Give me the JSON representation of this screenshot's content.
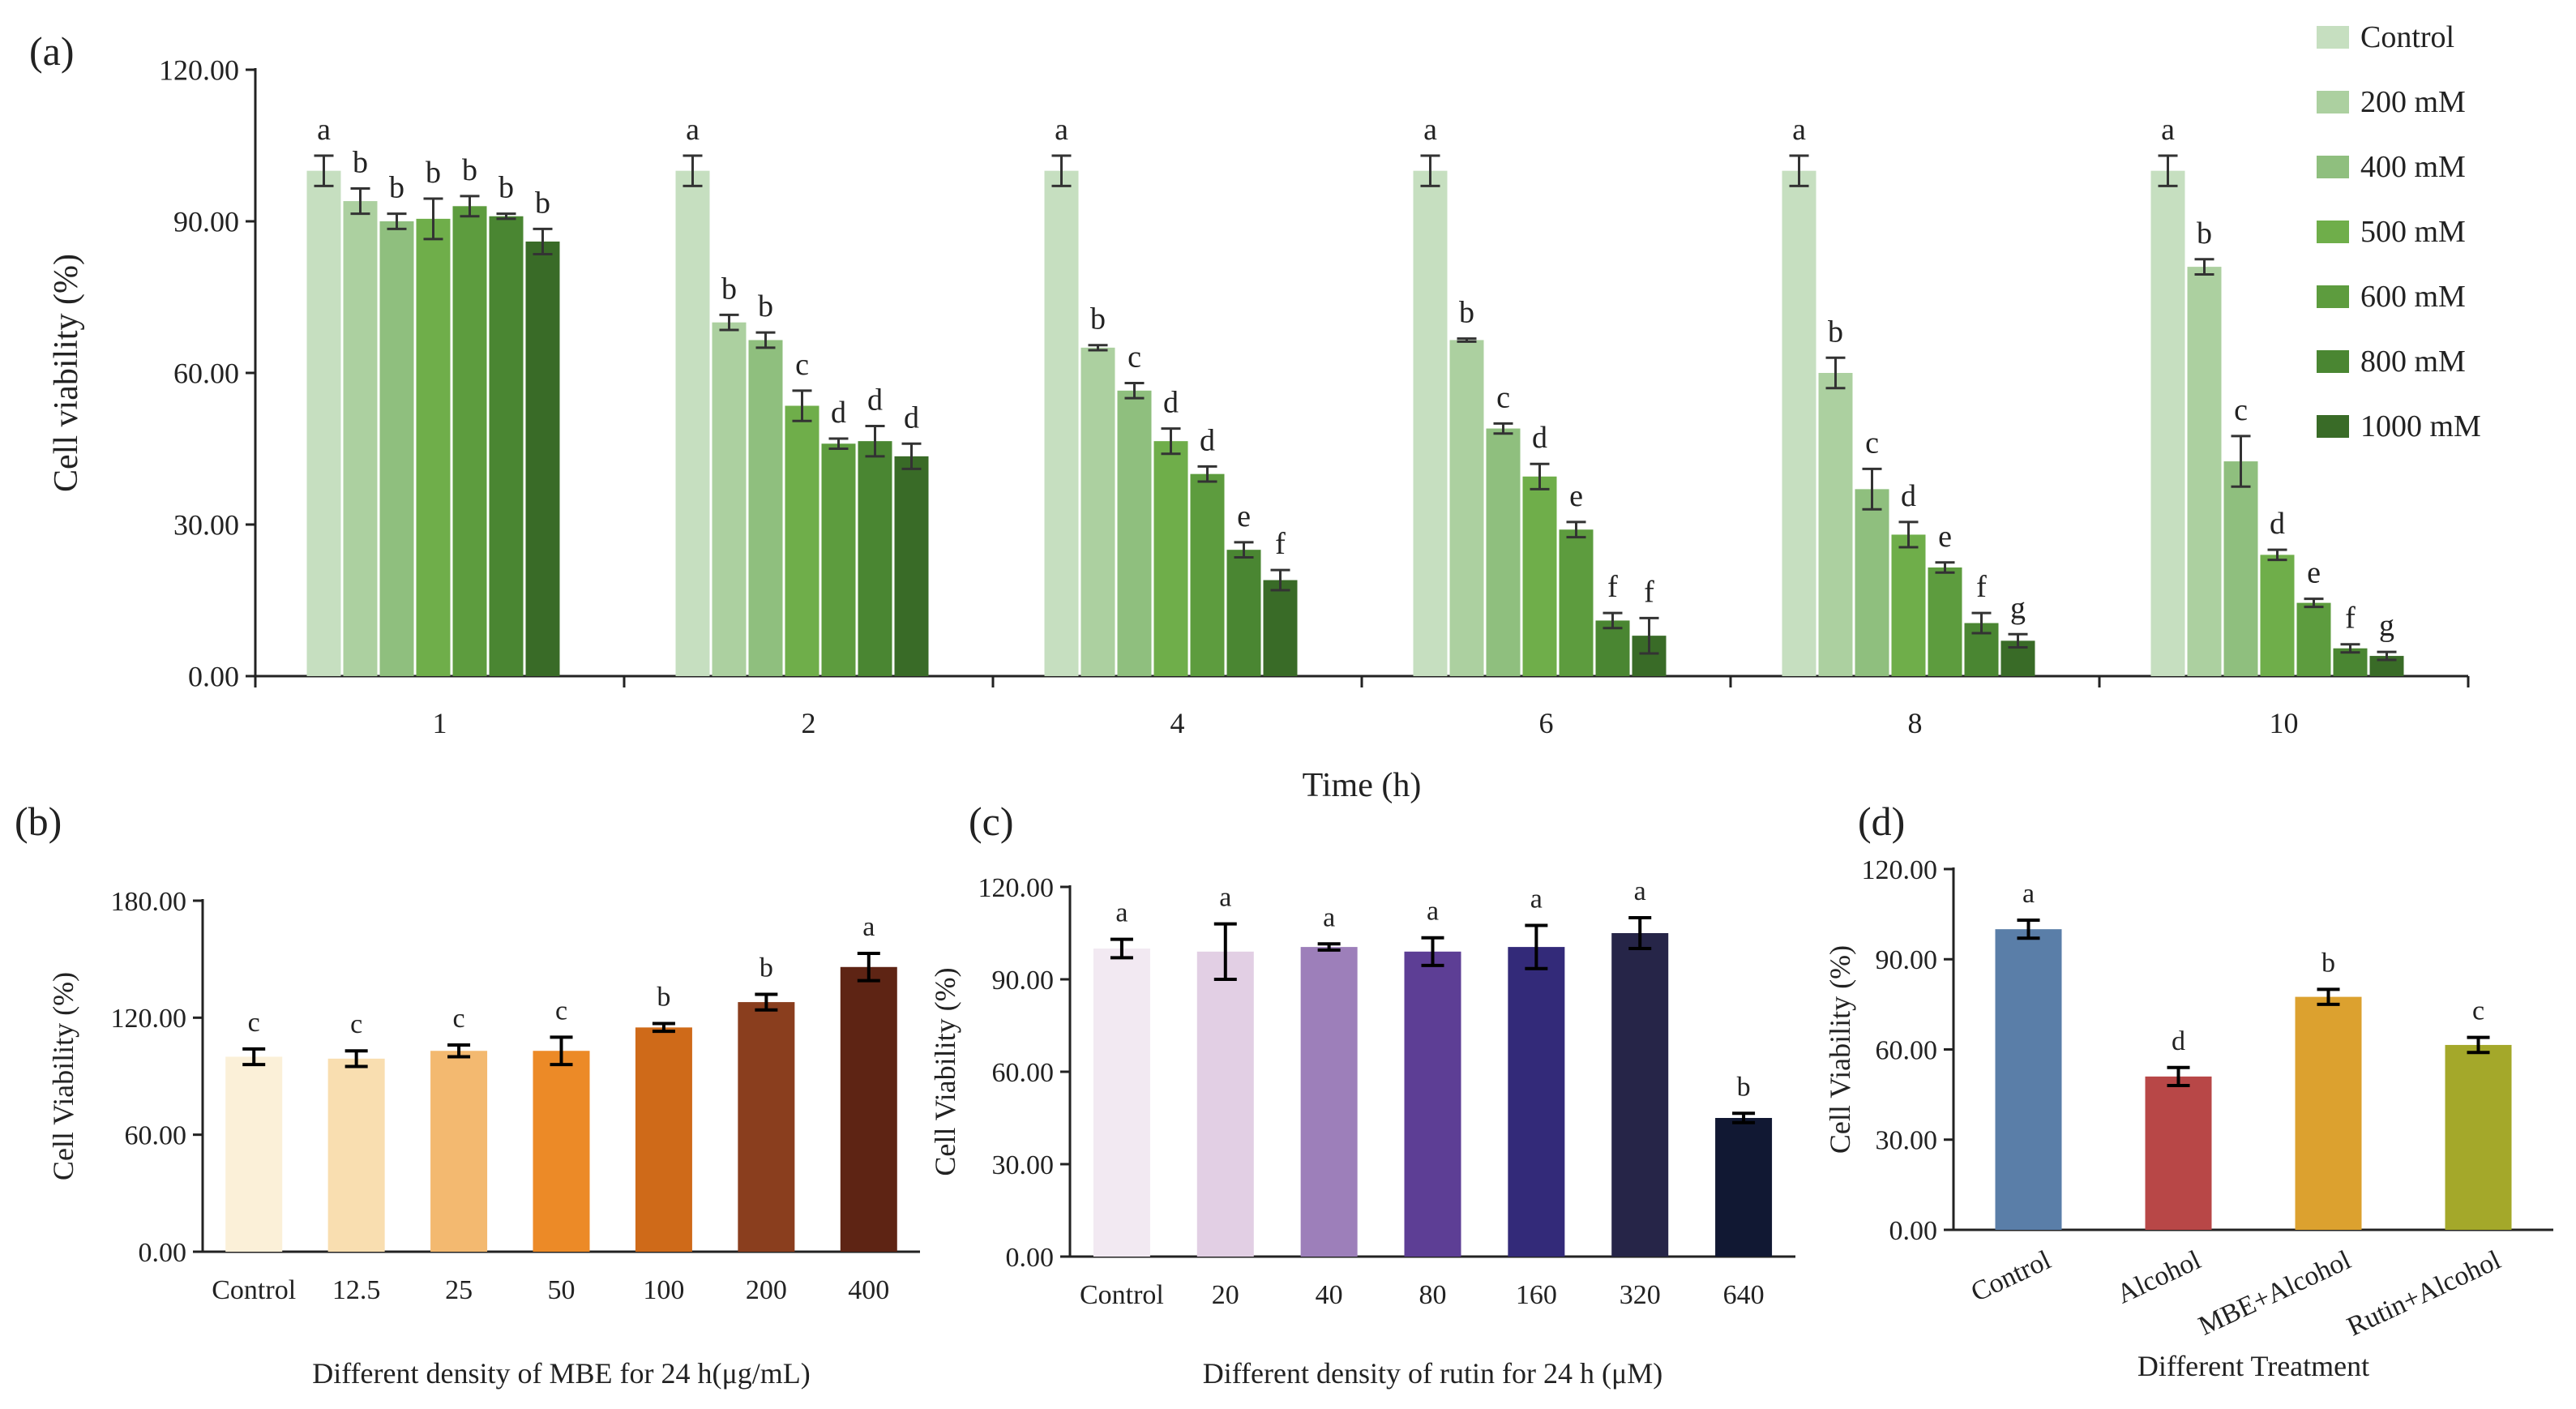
{
  "chart_data": [
    {
      "id": "a",
      "panel_label": "(a)",
      "type": "bar",
      "title": "",
      "xlabel": "Time (h)",
      "ylabel": "Cell viability (%)",
      "ylim": [
        0,
        120
      ],
      "yticks": [
        "0.00",
        "30.00",
        "60.00",
        "90.00",
        "120.00"
      ],
      "categories": [
        "1",
        "2",
        "4",
        "6",
        "8",
        "10"
      ],
      "legend_position": "top-right",
      "series": [
        {
          "name": "Control",
          "color": "#c6dfc0",
          "values": [
            100,
            100,
            100,
            100,
            100,
            100
          ],
          "errors": [
            3,
            3,
            3,
            3,
            3,
            3
          ],
          "labels": [
            "a",
            "a",
            "a",
            "a",
            "a",
            "a"
          ]
        },
        {
          "name": "200 mM",
          "color": "#acd0a0",
          "values": [
            94,
            70,
            65,
            66.5,
            60,
            81
          ],
          "errors": [
            2.5,
            1.5,
            0.5,
            0.3,
            3,
            1.5
          ],
          "labels": [
            "b",
            "b",
            "b",
            "b",
            "b",
            "b"
          ]
        },
        {
          "name": "400 mM",
          "color": "#8fbf7e",
          "values": [
            90,
            66.5,
            56.5,
            49,
            37,
            42.5
          ],
          "errors": [
            1.5,
            1.5,
            1.5,
            1,
            4,
            5
          ],
          "labels": [
            "b",
            "b",
            "c",
            "c",
            "c",
            "c"
          ]
        },
        {
          "name": "500 mM",
          "color": "#6fae4a",
          "values": [
            90.5,
            53.5,
            46.5,
            39.5,
            28,
            24
          ],
          "errors": [
            4,
            3,
            2.5,
            2.5,
            2.5,
            1
          ],
          "labels": [
            "b",
            "c",
            "d",
            "d",
            "d",
            "d"
          ]
        },
        {
          "name": "600 mM",
          "color": "#5d9c3e",
          "values": [
            93,
            46,
            40,
            29,
            21.5,
            14.5
          ],
          "errors": [
            2,
            1,
            1.5,
            1.5,
            1,
            0.8
          ],
          "labels": [
            "b",
            "d",
            "d",
            "e",
            "e",
            "e"
          ]
        },
        {
          "name": "800 mM",
          "color": "#4a8632",
          "values": [
            91,
            46.5,
            25,
            11,
            10.5,
            5.5
          ],
          "errors": [
            0.5,
            3,
            1.5,
            1.5,
            2,
            0.8
          ],
          "labels": [
            "b",
            "d",
            "e",
            "f",
            "f",
            "f"
          ]
        },
        {
          "name": "1000 mM",
          "color": "#396b27",
          "values": [
            86,
            43.5,
            19,
            8,
            7,
            4
          ],
          "errors": [
            2.5,
            2.5,
            2,
            3.5,
            1.3,
            0.8
          ],
          "labels": [
            "b",
            "d",
            "f",
            "f",
            "g",
            "g"
          ]
        }
      ]
    },
    {
      "id": "b",
      "panel_label": "(b)",
      "type": "bar",
      "title": "",
      "xlabel": "Different density of MBE for 24 h(μg/mL)",
      "ylabel": "Cell Viability (%)",
      "ylim": [
        0,
        180
      ],
      "yticks": [
        "0.00",
        "60.00",
        "120.00",
        "180.00"
      ],
      "categories": [
        "Control",
        "12.5",
        "25",
        "50",
        "100",
        "200",
        "400"
      ],
      "values": [
        100,
        99,
        103,
        103,
        115,
        128,
        146
      ],
      "errors": [
        4,
        4,
        3,
        7,
        2,
        4,
        7
      ],
      "labels": [
        "c",
        "c",
        "c",
        "c",
        "b",
        "b",
        "a"
      ],
      "colors": [
        "#fbf0d8",
        "#f9deb0",
        "#f3b970",
        "#ec8a27",
        "#cf6a19",
        "#8a3e1e",
        "#5e2414"
      ]
    },
    {
      "id": "c",
      "panel_label": "(c)",
      "type": "bar",
      "title": "",
      "xlabel": "Different density of rutin for 24 h (μM)",
      "ylabel": "Cell Viability (%)",
      "ylim": [
        0,
        120
      ],
      "yticks": [
        "0.00",
        "30.00",
        "60.00",
        "90.00",
        "120.00"
      ],
      "categories": [
        "Control",
        "20",
        "40",
        "80",
        "160",
        "320",
        "640"
      ],
      "values": [
        100,
        99,
        100.5,
        99,
        100.5,
        105,
        45
      ],
      "errors": [
        3,
        9,
        1,
        4.5,
        7,
        5,
        1.5
      ],
      "labels": [
        "a",
        "a",
        "a",
        "a",
        "a",
        "a",
        "b"
      ],
      "colors": [
        "#f2e9f2",
        "#e2cfe4",
        "#9d7fba",
        "#5d3e95",
        "#332a79",
        "#262548",
        "#111833"
      ]
    },
    {
      "id": "d",
      "panel_label": "(d)",
      "type": "bar",
      "title": "",
      "xlabel": "Different Treatment",
      "ylabel": "Cell Viability (%)",
      "ylim": [
        0,
        120
      ],
      "yticks": [
        "0.00",
        "30.00",
        "60.00",
        "90.00",
        "120.00"
      ],
      "categories": [
        "Control",
        "Alcohol",
        "MBE+Alcohol",
        "Rutin+Alcohol"
      ],
      "values": [
        100,
        51,
        77.5,
        61.5
      ],
      "errors": [
        3,
        3,
        2.5,
        2.5
      ],
      "labels": [
        "a",
        "d",
        "b",
        "c"
      ],
      "colors": [
        "#5a7ea8",
        "#b84747",
        "#dca12f",
        "#a4a82a"
      ]
    }
  ]
}
